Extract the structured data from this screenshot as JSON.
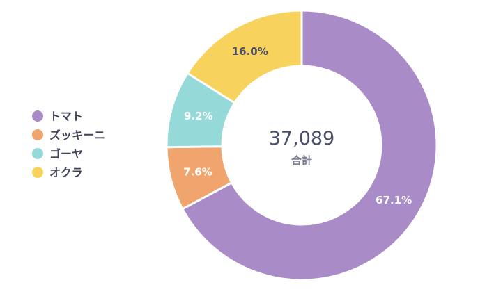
{
  "chart_data": {
    "type": "pie",
    "variant": "donut",
    "title": "",
    "total": {
      "value": "37,089",
      "label": "合計"
    },
    "legend_position": "left",
    "categories": [
      "トマト",
      "ズッキーニ",
      "ゴーヤ",
      "オクラ"
    ],
    "values": [
      67.1,
      7.6,
      9.2,
      16.0
    ],
    "value_labels": [
      "67.1%",
      "7.6%",
      "9.2%",
      "16.0%"
    ],
    "colors": [
      "#a98bc7",
      "#f0a46e",
      "#95d9d9",
      "#f7d35e"
    ],
    "label_colors": [
      "#ffffff",
      "#ffffff",
      "#ffffff",
      "#4a4f68"
    ]
  }
}
